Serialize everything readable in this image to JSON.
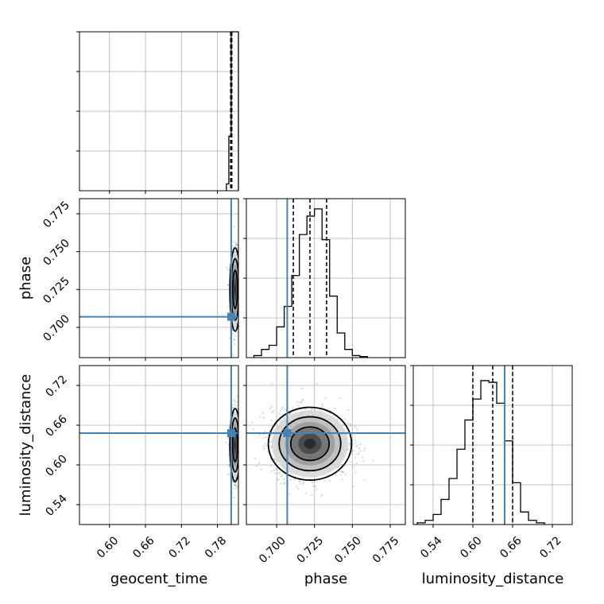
{
  "chart_data": {
    "type": "corner",
    "parameters": [
      "geocent_time",
      "phase",
      "luminosity_distance"
    ],
    "truth": {
      "geocent_time": 0.803,
      "phase": 0.707,
      "luminosity_distance": 0.648
    },
    "geocent_time": {
      "range": [
        0.55,
        0.815
      ],
      "ticks": [
        0.6,
        0.66,
        0.72,
        0.78
      ],
      "tick_labels": [
        "0.60",
        "0.66",
        "0.72",
        "0.78"
      ],
      "hist_edges": [
        0.795,
        0.799,
        0.803,
        0.807,
        0.811,
        0.815
      ],
      "hist_counts": [
        0.15,
        1.2,
        3.5,
        3.5,
        3.5
      ],
      "hist_max": 3.5,
      "quantiles": [
        0.802,
        0.803,
        0.804
      ]
    },
    "phase": {
      "range": [
        0.68,
        0.785
      ],
      "ticks": [
        0.7,
        0.725,
        0.75,
        0.775
      ],
      "tick_labels": [
        "0.700",
        "0.725",
        "0.750",
        "0.775"
      ],
      "hist_edges": [
        0.685,
        0.69,
        0.695,
        0.7,
        0.705,
        0.71,
        0.715,
        0.72,
        0.725,
        0.73,
        0.735,
        0.74,
        0.745,
        0.75,
        0.755,
        0.76
      ],
      "hist_counts": [
        0.02,
        0.08,
        0.12,
        0.3,
        0.5,
        0.8,
        1.2,
        1.38,
        1.45,
        1.15,
        0.6,
        0.24,
        0.08,
        0.02,
        0.01
      ],
      "hist_max": 1.55,
      "quantiles": [
        0.711,
        0.722,
        0.733
      ]
    },
    "luminosity_distance": {
      "range": [
        0.51,
        0.75
      ],
      "ticks": [
        0.54,
        0.6,
        0.66,
        0.72
      ],
      "tick_labels": [
        "0.54",
        "0.60",
        "0.66",
        "0.72"
      ],
      "hist_edges": [
        0.516,
        0.528,
        0.54,
        0.552,
        0.564,
        0.576,
        0.588,
        0.6,
        0.612,
        0.624,
        0.636,
        0.648,
        0.66,
        0.672,
        0.684,
        0.696,
        0.708
      ],
      "hist_counts": [
        0.02,
        0.05,
        0.12,
        0.3,
        0.55,
        0.9,
        1.25,
        1.5,
        1.72,
        1.7,
        1.45,
        1.0,
        0.5,
        0.15,
        0.05,
        0.02
      ],
      "hist_max": 1.9,
      "quantiles": [
        0.6,
        0.63,
        0.66
      ]
    },
    "phase_vs_time": {
      "x_center": 0.8095,
      "y_center": 0.725,
      "x_sigma": 0.0035,
      "y_sigma": 0.011
    },
    "distance_vs_time": {
      "x_center": 0.8095,
      "y_center": 0.63,
      "x_sigma": 0.0035,
      "y_sigma": 0.022
    },
    "distance_vs_phase": {
      "x_center": 0.722,
      "y_center": 0.632,
      "x_sigma": 0.011,
      "y_sigma": 0.022
    },
    "grid": true
  }
}
